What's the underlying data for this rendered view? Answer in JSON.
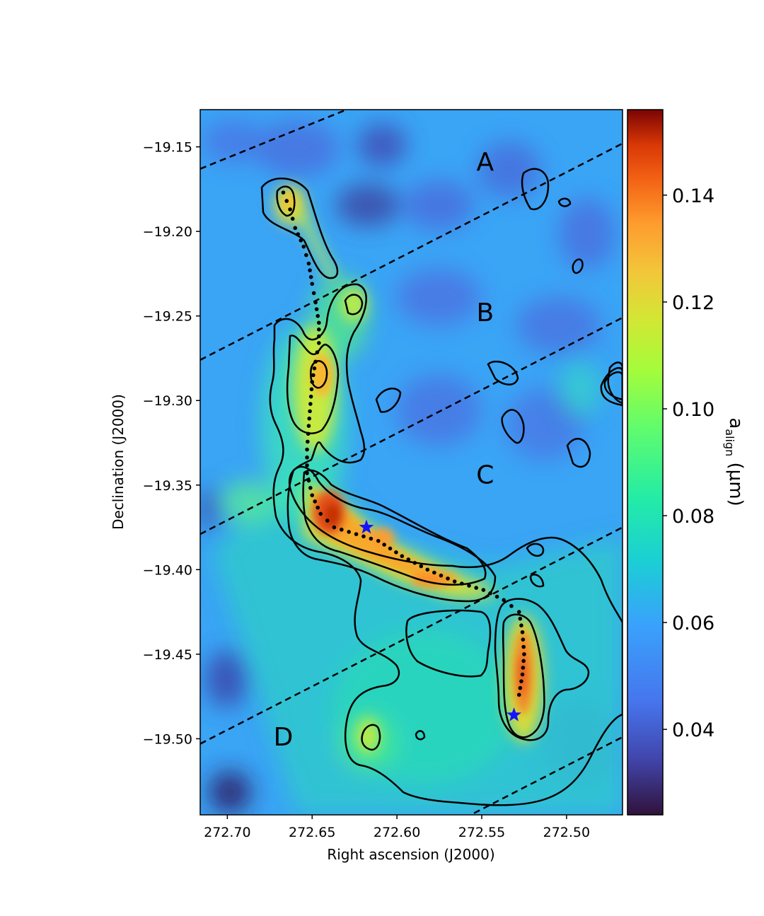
{
  "chart_data": {
    "type": "heatmap",
    "title": "",
    "xlabel": "Right ascension (J2000)",
    "ylabel": "Declination (J2000)",
    "xlim": [
      272.716,
      272.467
    ],
    "ylim": [
      -19.545,
      -19.128
    ],
    "x_inverted": true,
    "xticks": [
      272.7,
      272.65,
      272.6,
      272.55,
      272.5
    ],
    "xtick_labels": [
      "272.70",
      "272.65",
      "272.60",
      "272.55",
      "272.50"
    ],
    "yticks": [
      -19.15,
      -19.2,
      -19.25,
      -19.3,
      -19.35,
      -19.4,
      -19.45,
      -19.5
    ],
    "ytick_labels": [
      "−19.15",
      "−19.20",
      "−19.25",
      "−19.30",
      "−19.35",
      "−19.40",
      "−19.45",
      "−19.50"
    ],
    "colorbar": {
      "label_main": "a",
      "label_sub": "align",
      "label_unit": " (μm)",
      "range": [
        0.024,
        0.156
      ],
      "ticks": [
        0.04,
        0.06,
        0.08,
        0.1,
        0.12,
        0.14
      ],
      "tick_labels": [
        "0.04",
        "0.06",
        "0.08",
        "0.10",
        "0.12",
        "0.14"
      ],
      "colormap": "turbo"
    },
    "regions": [
      {
        "label": "A",
        "ra": 272.548,
        "dec": -19.164
      },
      {
        "label": "B",
        "ra": 272.548,
        "dec": -19.253
      },
      {
        "label": "C",
        "ra": 272.548,
        "dec": -19.349
      },
      {
        "label": "D",
        "ra": 272.667,
        "dec": -19.504
      }
    ],
    "dividers": [
      {
        "ra": [
          272.716,
          272.467
        ],
        "dec": [
          -19.163,
          -19.062
        ]
      },
      {
        "ra": [
          272.716,
          272.467
        ],
        "dec": [
          -19.276,
          -19.148
        ]
      },
      {
        "ra": [
          272.716,
          272.467
        ],
        "dec": [
          -19.379,
          -19.251
        ]
      },
      {
        "ra": [
          272.716,
          272.467
        ],
        "dec": [
          -19.503,
          -19.375
        ]
      },
      {
        "ra": [
          272.716,
          272.467
        ],
        "dec": [
          -19.627,
          -19.499
        ]
      }
    ],
    "filament_spine": [
      [
        272.667,
        -19.177
      ],
      [
        272.663,
        -19.187
      ],
      [
        272.66,
        -19.198
      ],
      [
        272.655,
        -19.209
      ],
      [
        272.652,
        -19.219
      ],
      [
        272.65,
        -19.231
      ],
      [
        272.648,
        -19.242
      ],
      [
        272.646,
        -19.254
      ],
      [
        272.646,
        -19.266
      ],
      [
        272.648,
        -19.277
      ],
      [
        272.65,
        -19.289
      ],
      [
        272.651,
        -19.302
      ],
      [
        272.652,
        -19.315
      ],
      [
        272.653,
        -19.329
      ],
      [
        272.653,
        -19.343
      ],
      [
        272.65,
        -19.356
      ],
      [
        272.645,
        -19.367
      ],
      [
        272.637,
        -19.375
      ],
      [
        272.624,
        -19.379
      ],
      [
        272.611,
        -19.383
      ],
      [
        272.597,
        -19.392
      ],
      [
        272.582,
        -19.4
      ],
      [
        272.566,
        -19.407
      ],
      [
        272.549,
        -19.412
      ],
      [
        272.537,
        -19.418
      ],
      [
        272.528,
        -19.425
      ],
      [
        272.526,
        -19.437
      ],
      [
        272.525,
        -19.45
      ],
      [
        272.526,
        -19.462
      ],
      [
        272.528,
        -19.474
      ],
      [
        272.528,
        -19.478
      ]
    ],
    "stars": [
      {
        "ra": 272.618,
        "dec": -19.375,
        "color": "#1414ff"
      },
      {
        "ra": 272.531,
        "dec": -19.486,
        "color": "#1414ff"
      }
    ],
    "contour_color": "#000000",
    "spine_color": "#000000"
  }
}
